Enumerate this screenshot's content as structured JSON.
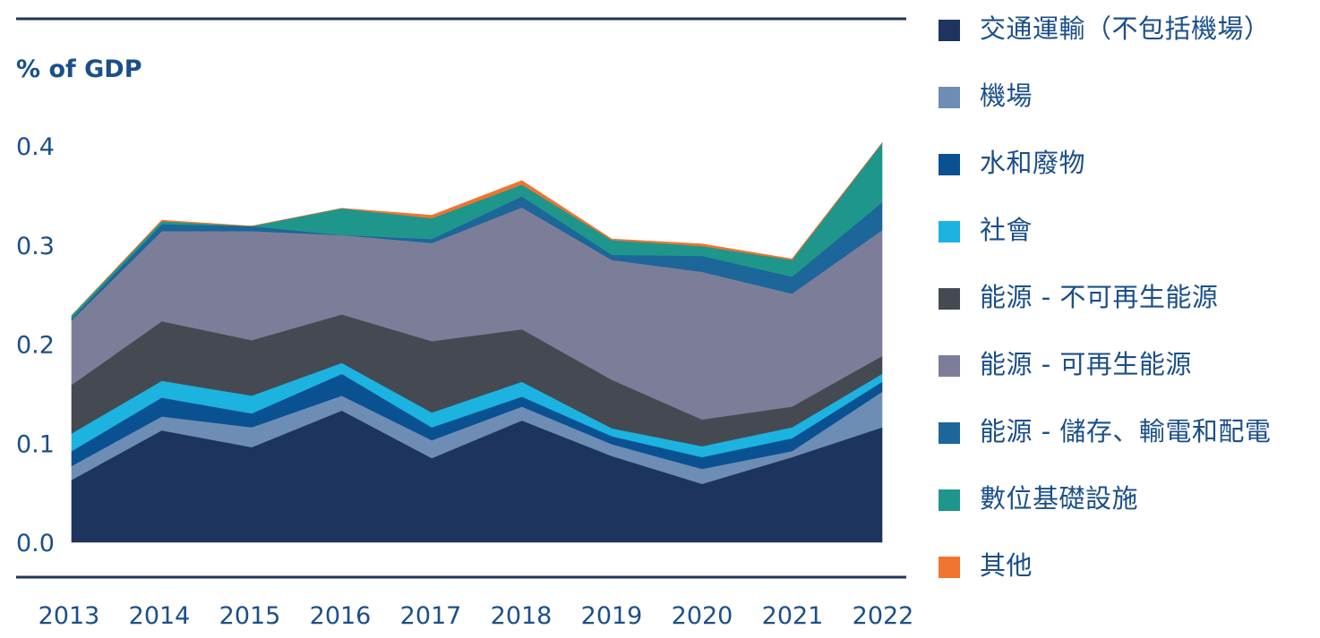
{
  "chart_data": {
    "type": "area",
    "stacked": true,
    "ylabel": "% of GDP",
    "title": "",
    "xlabel": "",
    "x": [
      "2013",
      "2014",
      "2015",
      "2016",
      "2017",
      "2018",
      "2019",
      "2020",
      "2021",
      "2022"
    ],
    "ylim": [
      0,
      0.4
    ],
    "yticks": [
      "0.0",
      "0.1",
      "0.2",
      "0.3",
      "0.4"
    ],
    "grid": false,
    "legend_position": "right",
    "series": [
      {
        "name": "交通運輸（不包括機場）",
        "color": "#1d355e",
        "values": [
          0.063,
          0.113,
          0.096,
          0.133,
          0.085,
          0.123,
          0.087,
          0.059,
          0.086,
          0.116
        ]
      },
      {
        "name": "機場",
        "color": "#6e8db5",
        "values": [
          0.014,
          0.014,
          0.02,
          0.015,
          0.018,
          0.014,
          0.012,
          0.015,
          0.006,
          0.036
        ]
      },
      {
        "name": "水和廢物",
        "color": "#0a5192",
        "values": [
          0.015,
          0.019,
          0.014,
          0.022,
          0.013,
          0.01,
          0.008,
          0.012,
          0.013,
          0.01
        ]
      },
      {
        "name": "社會",
        "color": "#1cb3e1",
        "values": [
          0.018,
          0.017,
          0.018,
          0.011,
          0.015,
          0.015,
          0.008,
          0.011,
          0.011,
          0.008
        ]
      },
      {
        "name": "能源 - 不可再生能源",
        "color": "#454a52",
        "values": [
          0.049,
          0.06,
          0.056,
          0.049,
          0.072,
          0.053,
          0.049,
          0.027,
          0.021,
          0.018
        ]
      },
      {
        "name": "能源 - 可再生能源",
        "color": "#7c7e99",
        "values": [
          0.065,
          0.091,
          0.11,
          0.08,
          0.099,
          0.123,
          0.121,
          0.149,
          0.114,
          0.127
        ]
      },
      {
        "name": "能源 - 儲存、輸電和配電",
        "color": "#1c6699",
        "values": [
          0.002,
          0.007,
          0.005,
          0.0,
          0.004,
          0.011,
          0.005,
          0.016,
          0.017,
          0.028
        ]
      },
      {
        "name": "數位基礎設施",
        "color": "#1f968c",
        "values": [
          0.003,
          0.003,
          0.0,
          0.027,
          0.021,
          0.012,
          0.015,
          0.01,
          0.017,
          0.06
        ]
      },
      {
        "name": "其他",
        "color": "#ee7430",
        "values": [
          0.0,
          0.001,
          0.0,
          0.0,
          0.003,
          0.004,
          0.001,
          0.002,
          0.001,
          0.0
        ]
      }
    ]
  }
}
